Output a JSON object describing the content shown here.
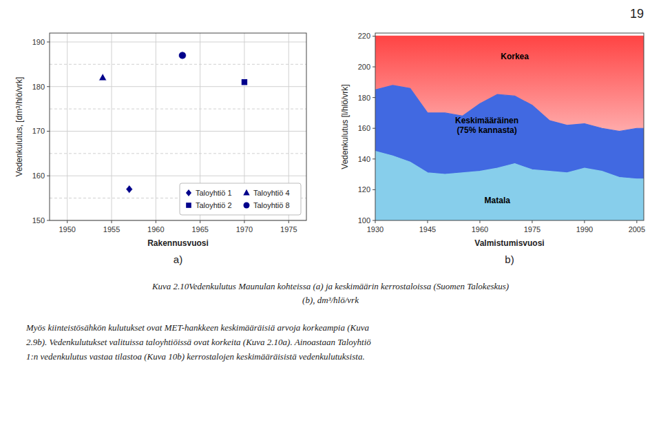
{
  "chart_data": [
    {
      "type": "scatter",
      "subtitle": "a)",
      "xlabel": "Rakennusvuosi",
      "ylabel": "Vedenkulutus, [dm³/hlö/vrk]",
      "xlim": [
        1948,
        1977
      ],
      "ylim": [
        150,
        192
      ],
      "xticks": [
        1950,
        1955,
        1960,
        1965,
        1970,
        1975
      ],
      "yticks": [
        150,
        160,
        170,
        180,
        190
      ],
      "yticks_minor": [
        155,
        165,
        175,
        185
      ],
      "grid": true,
      "legend": "lower right",
      "series": [
        {
          "name": "Taloyhtiö 1",
          "x": [
            1957,
            1963
          ],
          "values": [
            157,
            187
          ],
          "marker": "diamond",
          "color": "#00008B"
        },
        {
          "name": "Taloyhtiö 2",
          "x": [
            1970
          ],
          "values": [
            181
          ],
          "marker": "square",
          "color": "#00008B"
        },
        {
          "name": "Taloyhtiö 4",
          "x": [
            1954
          ],
          "values": [
            182
          ],
          "marker": "triangle",
          "color": "#00008B"
        },
        {
          "name": "Taloyhtiö 8",
          "x": [
            1963
          ],
          "values": [
            187
          ],
          "marker": "circle",
          "color": "#00008B"
        }
      ]
    },
    {
      "type": "area",
      "subtitle": "b)",
      "xlabel": "Valmistumisvuosi",
      "ylabel": "Vedenkulutus [l/hlö/vrk]",
      "xlim": [
        1930,
        2007
      ],
      "ylim": [
        100,
        222
      ],
      "xticks": [
        1930,
        1945,
        1960,
        1975,
        1990,
        2005
      ],
      "yticks": [
        100,
        120,
        140,
        160,
        180,
        200,
        220
      ],
      "grid": false,
      "x": [
        1930,
        1935,
        1940,
        1945,
        1950,
        1955,
        1960,
        1965,
        1970,
        1975,
        1980,
        1985,
        1990,
        1995,
        2000,
        2005,
        2007
      ],
      "series": [
        {
          "color": "#87CEEB",
          "values": [
            145,
            142,
            138,
            131,
            130,
            131,
            132,
            134,
            137,
            133,
            132,
            131,
            134,
            132,
            128,
            127,
            127
          ]
        },
        {
          "color": "#4169E1",
          "values": [
            185,
            188,
            186,
            170,
            170,
            168,
            176,
            182,
            181,
            175,
            165,
            162,
            163,
            160,
            158,
            160,
            160
          ]
        },
        {
          "color": "#FF4444",
          "values": [
            220,
            220,
            220,
            220,
            220,
            220,
            220,
            220,
            220,
            220,
            220,
            220,
            220,
            220,
            220,
            220,
            220
          ]
        }
      ],
      "annotations": [
        {
          "text": "Korkea",
          "x": 1970,
          "y": 207
        },
        {
          "text": "Keskimääräinen\n(75% kannasta)",
          "x": 1962,
          "y": 162
        },
        {
          "text": "Matala",
          "x": 1965,
          "y": 113
        }
      ]
    }
  ],
  "page_number": "19",
  "caption": [
    "Kuva 2.10Vedenkulutus Maunulan kohteissa (a) ja keskimäärin kerrostaloissa (Suomen Talokeskus)",
    "(b), dm³/hlö/vrk"
  ],
  "body_text": [
    "Myös kiinteistösähkön kulutukset ovat MET-hankkeen keskimääräisiä arvoja korkeampia (Kuva",
    "2.9b). Vedenkulutukset valituissa taloyhtiöissä ovat korkeita (Kuva 2.10a). Ainoastaan Taloyhtiö",
    "1:n vedenkulutus vastaa tilastoa (Kuva 10b) kerrostalojen keskimääräisistä vedenkulutuksista."
  ]
}
